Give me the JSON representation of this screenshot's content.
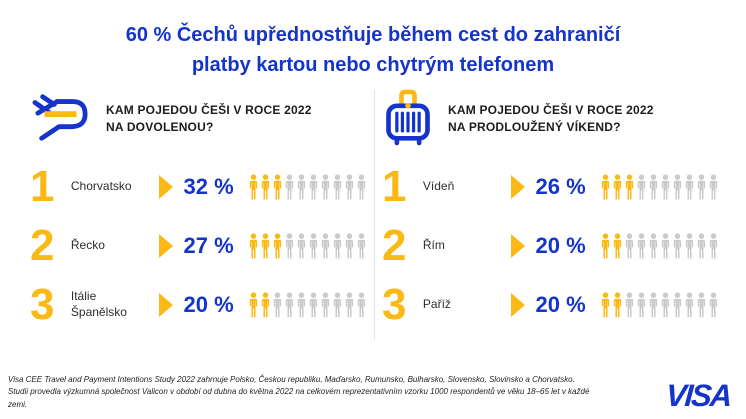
{
  "title": {
    "line1": "60 % Čechů upřednostňuje během cest do zahraničí",
    "line2": "platby kartou nebo chytrým telefonem"
  },
  "colors": {
    "blue": "#1434CB",
    "gold": "#FBB916",
    "gray": "#CBCBCB",
    "divider": "#DCE6F3"
  },
  "columns": [
    {
      "icon": "plane-icon",
      "heading_line1": "KAM POJEDOU ČEŠI V ROCE 2022",
      "heading_line2": "NA DOVOLENOU?",
      "rows": [
        {
          "rank": "1",
          "destination": "Chorvatsko",
          "destination2": "",
          "percent": "32 %",
          "value": 32,
          "filled": 3,
          "total": 10
        },
        {
          "rank": "2",
          "destination": "Řecko",
          "destination2": "",
          "percent": "27 %",
          "value": 27,
          "filled": 3,
          "total": 10
        },
        {
          "rank": "3",
          "destination": "Itálie",
          "destination2": "Španělsko",
          "percent": "20 %",
          "value": 20,
          "filled": 2,
          "total": 10
        }
      ]
    },
    {
      "icon": "suitcase-icon",
      "heading_line1": "KAM POJEDOU ČEŠI V ROCE 2022",
      "heading_line2": "NA PRODLOUŽENÝ VÍKEND?",
      "rows": [
        {
          "rank": "1",
          "destination": "Vídeň",
          "destination2": "",
          "percent": "26 %",
          "value": 26,
          "filled": 3,
          "total": 10
        },
        {
          "rank": "2",
          "destination": "Řím",
          "destination2": "",
          "percent": "20 %",
          "value": 20,
          "filled": 2,
          "total": 10
        },
        {
          "rank": "3",
          "destination": "Paříž",
          "destination2": "",
          "percent": "20 %",
          "value": 20,
          "filled": 2,
          "total": 10
        }
      ]
    }
  ],
  "chart_data": [
    {
      "type": "bar",
      "title": "KAM POJEDOU ČEŠI V ROCE 2022 NA DOVOLENOU?",
      "categories": [
        "Chorvatsko",
        "Řecko",
        "Itálie / Španělsko"
      ],
      "values": [
        32,
        27,
        20
      ],
      "unit": "%",
      "ranks": [
        1,
        2,
        3
      ],
      "pictogram": {
        "total_icons": 10,
        "filled_icons": [
          3,
          3,
          2
        ]
      },
      "legend_position": "none"
    },
    {
      "type": "bar",
      "title": "KAM POJEDOU ČEŠI V ROCE 2022 NA PRODLOUŽENÝ VÍKEND?",
      "categories": [
        "Vídeň",
        "Řím",
        "Paříž"
      ],
      "values": [
        26,
        20,
        20
      ],
      "unit": "%",
      "ranks": [
        1,
        2,
        3
      ],
      "pictogram": {
        "total_icons": 10,
        "filled_icons": [
          3,
          2,
          2
        ]
      },
      "legend_position": "none"
    }
  ],
  "footer": {
    "line1": "Visa CEE Travel and Payment Intentions Study 2022 zahrnuje Polsko, Českou republiku, Maďarsko, Rumunsko, Bulharsko, Slovensko, Slovinsko a Chorvatsko.",
    "line2": "Studii provedla výzkumná společnost Valicon v období od dubna do května 2022 na celkovém reprezentativním vzorku 1000 respondentů ve věku 18–65 let v každé zemi.",
    "logo": "VISA"
  }
}
